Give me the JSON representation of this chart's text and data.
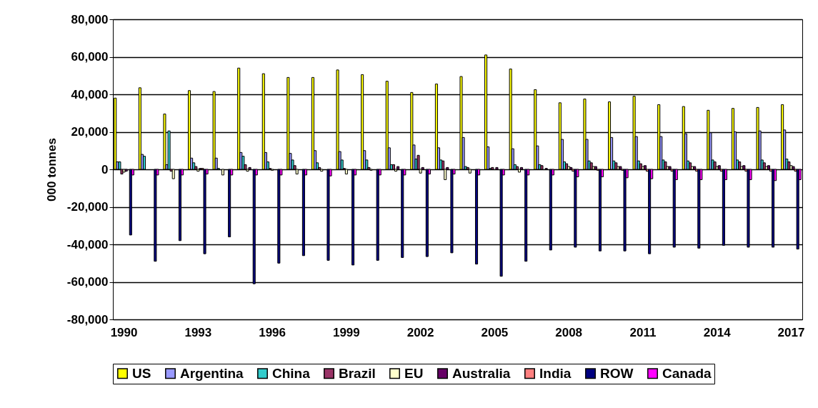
{
  "chart_data": {
    "type": "bar",
    "ylabel": "000 tonnes",
    "categories": [
      "1990",
      null,
      null,
      "1993",
      null,
      null,
      "1996",
      null,
      null,
      "1999",
      null,
      null,
      "2002",
      null,
      null,
      "2005",
      null,
      null,
      "2008",
      null,
      null,
      "2011",
      null,
      null,
      "2014",
      null,
      null,
      "2017"
    ],
    "ylim": [
      -80000,
      80000
    ],
    "yticks": [
      {
        "value": -80000,
        "label": "-80,000"
      },
      {
        "value": -60000,
        "label": "-60,000"
      },
      {
        "value": -40000,
        "label": "-40,000"
      },
      {
        "value": -20000,
        "label": "-20,000"
      },
      {
        "value": 0,
        "label": "0"
      },
      {
        "value": 20000,
        "label": "20,000"
      },
      {
        "value": 40000,
        "label": "40,000"
      },
      {
        "value": 60000,
        "label": "60,000"
      },
      {
        "value": 80000,
        "label": "80,000"
      }
    ],
    "grid": "y",
    "legend": "bottom",
    "series": [
      {
        "name": "US",
        "color": "#ffff00",
        "values": [
          38000,
          43500,
          29500,
          42000,
          41500,
          54000,
          51000,
          49000,
          49000,
          53000,
          50500,
          47000,
          41000,
          45500,
          49500,
          61000,
          53500,
          42500,
          35500,
          37500,
          36000,
          39000,
          34500,
          33500,
          31500,
          32500,
          33000,
          34500
        ]
      },
      {
        "name": "Argentina",
        "color": "#9999ff",
        "values": [
          4000,
          8000,
          2500,
          6000,
          6000,
          9000,
          9000,
          8500,
          10000,
          9500,
          10000,
          11500,
          13000,
          11500,
          17000,
          12000,
          11000,
          12500,
          16000,
          16000,
          17000,
          17500,
          17500,
          19000,
          19500,
          20000,
          20500,
          21000
        ]
      },
      {
        "name": "China",
        "color": "#33cccc",
        "values": [
          4000,
          7000,
          20500,
          3500,
          500,
          7000,
          4000,
          5000,
          3500,
          5000,
          5000,
          2500,
          5500,
          5000,
          1500,
          500,
          2500,
          2500,
          4000,
          4500,
          4500,
          4500,
          5000,
          4500,
          5000,
          5000,
          5000,
          5500
        ]
      },
      {
        "name": "Brazil",
        "color": "#993366",
        "values": [
          -2500,
          null,
          -1000,
          1500,
          null,
          2500,
          500,
          2000,
          1000,
          500,
          1000,
          2500,
          7500,
          4500,
          1000,
          1000,
          1500,
          2000,
          3000,
          3500,
          3500,
          3000,
          4000,
          3500,
          4000,
          4000,
          3500,
          4000
        ]
      },
      {
        "name": "EU",
        "color": "#ffffcc",
        "values": [
          -1500,
          null,
          -5000,
          -1000,
          -3000,
          -1000,
          -500,
          -2500,
          -1000,
          -2500,
          -500,
          -1000,
          -2000,
          -5500,
          -2000,
          null,
          -1500,
          null,
          1500,
          1500,
          1500,
          1500,
          1500,
          1500,
          1500,
          1500,
          1500,
          2000
        ]
      },
      {
        "name": "Australia",
        "color": "#660066",
        "values": [
          -1000,
          null,
          null,
          500,
          null,
          1000,
          null,
          null,
          null,
          null,
          null,
          1500,
          1000,
          1000,
          null,
          1000,
          1000,
          500,
          1000,
          1500,
          1500,
          2000,
          1500,
          1500,
          2000,
          2000,
          2000,
          1500
        ]
      },
      {
        "name": "India",
        "color": "#ff8080",
        "values": [
          null,
          null,
          null,
          500,
          null,
          null,
          null,
          null,
          null,
          null,
          null,
          null,
          null,
          null,
          null,
          null,
          null,
          null,
          -1000,
          -500,
          -500,
          -1000,
          -1000,
          -1000,
          -1000,
          -1000,
          -1000,
          -1000
        ]
      },
      {
        "name": "ROW",
        "color": "#000080",
        "values": [
          -35000,
          -49000,
          -38000,
          -45000,
          -36000,
          -61000,
          -50000,
          -46000,
          -48500,
          -51000,
          -48500,
          -47000,
          -46500,
          -44500,
          -50500,
          -57000,
          -49000,
          -43000,
          -41500,
          -43500,
          -43500,
          -45000,
          -41500,
          -42000,
          -40500,
          -41500,
          -41500,
          -42500
        ]
      },
      {
        "name": "Canada",
        "color": "#ff00ff",
        "values": [
          -3000,
          -3000,
          -3000,
          -2500,
          -3000,
          -3000,
          -3000,
          -3000,
          -3500,
          -3000,
          -3000,
          -3000,
          -2500,
          -2500,
          -3000,
          -3000,
          -3000,
          -3000,
          -4000,
          -4000,
          -4500,
          -5000,
          -5500,
          -5500,
          -5500,
          -5500,
          -6000,
          -5500
        ]
      }
    ]
  }
}
